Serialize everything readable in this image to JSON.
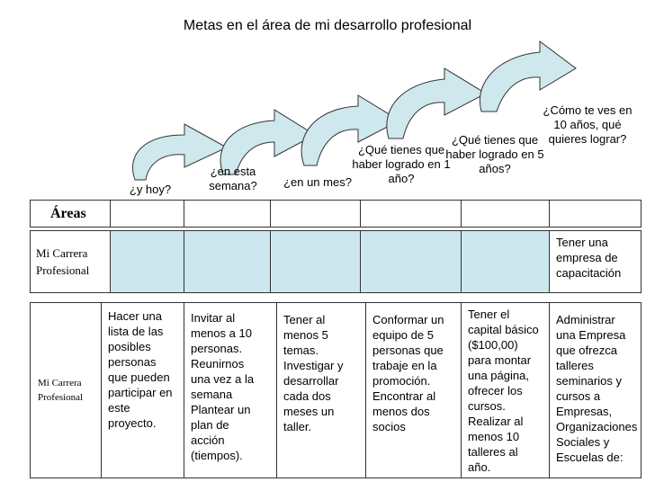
{
  "title": "Metas en el área de mi desarrollo profesional",
  "questions": [
    "¿y hoy?",
    "¿en esta semana?",
    "¿en un mes?",
    "¿Qué tienes que haber logrado en 1 año?",
    "¿Qué tienes que haber logrado en 5 años?",
    "¿Cómo te ves en 10 años, qué quieres lograr?"
  ],
  "areas_header": "Áreas",
  "row1": {
    "label": "Mi Carrera Profesional",
    "last": "Tener una empresa de capacitación"
  },
  "row2": {
    "label": "Mi Carrera Profesional",
    "cells": [
      "Hacer una lista de las posibles personas que pueden participar en este proyecto.",
      "Invitar al menos a 10 personas. Reunirnos una vez a la semana Plantear un plan de acción (tiempos).",
      "Tener al menos 5 temas. Investigar y desarrollar cada dos meses un taller.",
      "Conformar un equipo de 5 personas que trabaje en la promoción. Encontrar al menos dos socios",
      "Tener el capital básico ($100,00) para montar una página, ofrecer los cursos. Realizar al menos 10 talleres al año.",
      "Administrar una Empresa que ofrezca talleres seminarios y cursos a Empresas, Organizaciones Sociales y Escuelas de:"
    ]
  },
  "colors": {
    "arrow_fill": "#cfe8ee",
    "cell_fill": "#cde7ef",
    "border": "#333333"
  }
}
